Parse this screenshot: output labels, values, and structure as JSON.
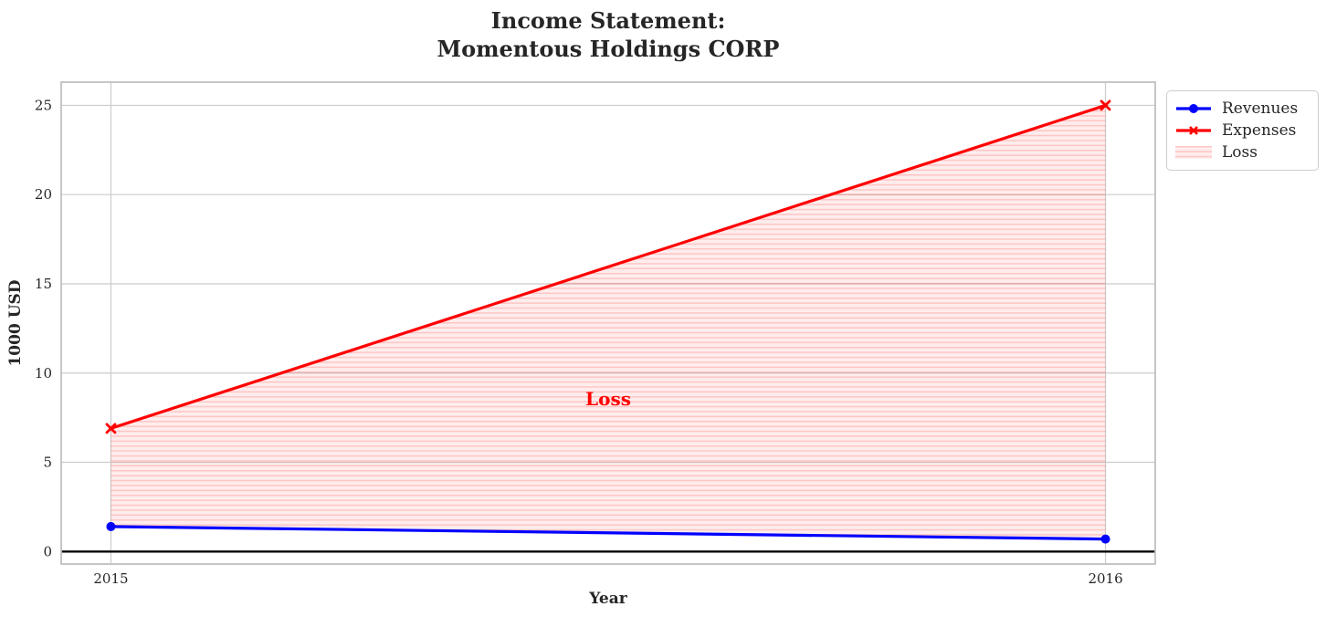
{
  "title": "Income Statement:\nMomentous Holdings CORP",
  "chart_data": {
    "type": "line",
    "title": "Income Statement:\nMomentous Holdings CORP",
    "xlabel": "Year",
    "ylabel": "1000 USD",
    "x": [
      2015,
      2016
    ],
    "xticklabels": [
      "2015",
      "2016"
    ],
    "yticks": [
      0,
      5,
      10,
      15,
      20,
      25
    ],
    "xlim": [
      2014.95,
      2016.05
    ],
    "ylim": [
      -0.7,
      26.3
    ],
    "grid": true,
    "zero_line_y": 0,
    "series": [
      {
        "name": "Revenues",
        "values": [
          1.4,
          0.7
        ],
        "color": "#0000ff",
        "marker": "circle"
      },
      {
        "name": "Expenses",
        "values": [
          6.9,
          25.0
        ],
        "color": "#ff0000",
        "marker": "x"
      }
    ],
    "fill_between": {
      "label": "Loss",
      "upper_series": "Expenses",
      "lower_series": "Revenues",
      "facecolor": "rgba(255,0,0,0.07)",
      "hatch": "horizontal",
      "hatchcolor": "rgba(255,0,0,0.17)"
    },
    "annotation": {
      "text": "Loss",
      "x": 2015.5,
      "y": 8.55,
      "color": "#ff0000"
    },
    "legend": {
      "position": "outside-upper-right",
      "entries": [
        {
          "label": "Revenues",
          "swatch": "line-circle",
          "color": "#0000ff"
        },
        {
          "label": "Expenses",
          "swatch": "line-x",
          "color": "#ff0000"
        },
        {
          "label": "Loss",
          "swatch": "hatch-patch",
          "color": "rgba(255,0,0,0.17)"
        }
      ]
    }
  },
  "style": {
    "grid_color": "#cccccc",
    "spine_color": "#c0c0c0",
    "tick_label_color": "#262626",
    "zero_line_color": "#000000"
  }
}
